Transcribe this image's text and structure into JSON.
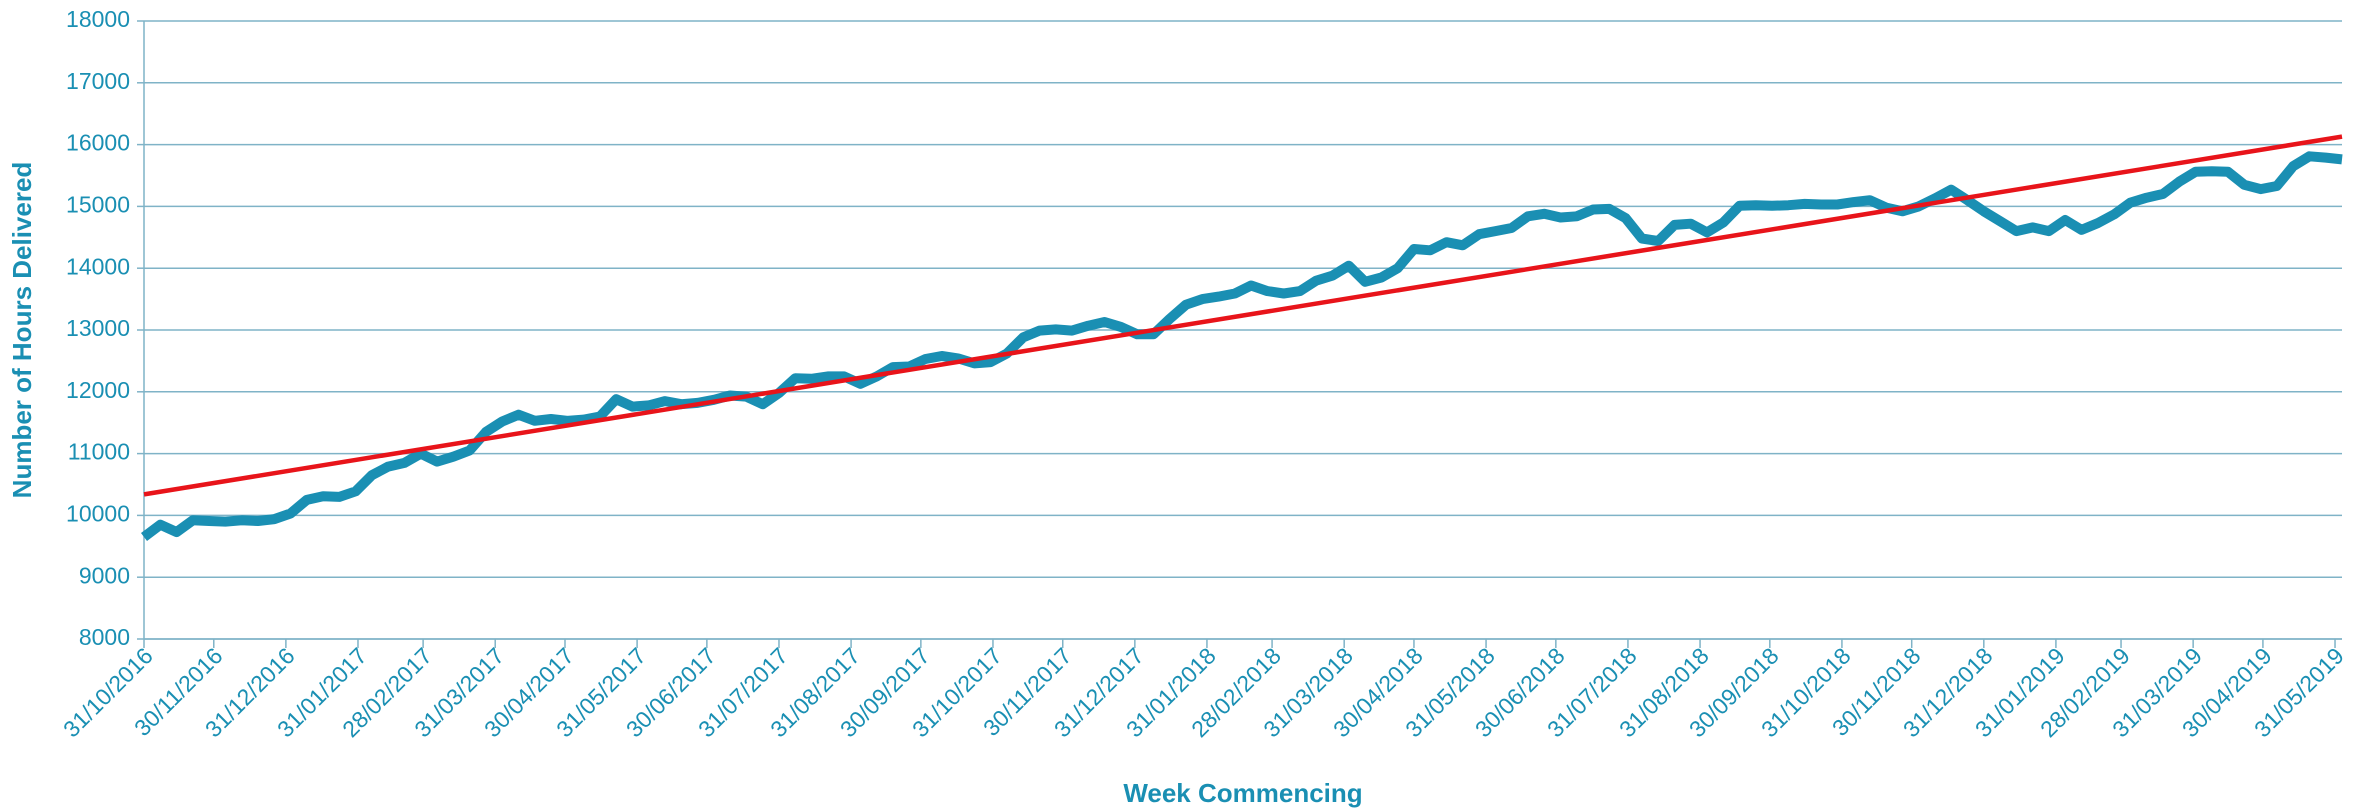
{
  "chart_data": {
    "type": "line",
    "x_label": "Week Commencing",
    "y_label": "Number of Hours Delivered",
    "series": [
      {
        "color": "#1a8fb3",
        "x": [
          "2016-10-31",
          "2016-11-07",
          "2016-11-14",
          "2016-11-21",
          "2016-11-28",
          "2016-12-05",
          "2016-12-12",
          "2016-12-19",
          "2016-12-26",
          "2017-01-02",
          "2017-01-09",
          "2017-01-16",
          "2017-01-23",
          "2017-01-30",
          "2017-02-06",
          "2017-02-13",
          "2017-02-20",
          "2017-02-27",
          "2017-03-06",
          "2017-03-13",
          "2017-03-20",
          "2017-03-27",
          "2017-04-03",
          "2017-04-10",
          "2017-04-17",
          "2017-04-24",
          "2017-05-01",
          "2017-05-08",
          "2017-05-15",
          "2017-05-22",
          "2017-05-29",
          "2017-06-05",
          "2017-06-12",
          "2017-06-19",
          "2017-06-26",
          "2017-07-03",
          "2017-07-10",
          "2017-07-17",
          "2017-07-24",
          "2017-07-31",
          "2017-08-07",
          "2017-08-14",
          "2017-08-21",
          "2017-08-28",
          "2017-09-04",
          "2017-09-11",
          "2017-09-18",
          "2017-09-25",
          "2017-10-02",
          "2017-10-09",
          "2017-10-16",
          "2017-10-23",
          "2017-10-30",
          "2017-11-06",
          "2017-11-13",
          "2017-11-20",
          "2017-11-27",
          "2017-12-04",
          "2017-12-11",
          "2017-12-18",
          "2017-12-25",
          "2018-01-01",
          "2018-01-08",
          "2018-01-15",
          "2018-01-22",
          "2018-01-29",
          "2018-02-05",
          "2018-02-12",
          "2018-02-19",
          "2018-02-26",
          "2018-03-05",
          "2018-03-12",
          "2018-03-19",
          "2018-03-26",
          "2018-04-02",
          "2018-04-09",
          "2018-04-16",
          "2018-04-23",
          "2018-04-30",
          "2018-05-07",
          "2018-05-14",
          "2018-05-21",
          "2018-05-28",
          "2018-06-04",
          "2018-06-11",
          "2018-06-18",
          "2018-06-25",
          "2018-07-02",
          "2018-07-09",
          "2018-07-16",
          "2018-07-23",
          "2018-07-30",
          "2018-08-06",
          "2018-08-13",
          "2018-08-20",
          "2018-08-27",
          "2018-09-03",
          "2018-09-10",
          "2018-09-17",
          "2018-09-24",
          "2018-10-01",
          "2018-10-08",
          "2018-10-15",
          "2018-10-22",
          "2018-10-29",
          "2018-11-05",
          "2018-11-12",
          "2018-11-19",
          "2018-11-26",
          "2018-12-03",
          "2018-12-10",
          "2018-12-17",
          "2018-12-24",
          "2018-12-31",
          "2019-01-07",
          "2019-01-14",
          "2019-01-21",
          "2019-01-28",
          "2019-02-04",
          "2019-02-11",
          "2019-02-18",
          "2019-02-25",
          "2019-03-04",
          "2019-03-11",
          "2019-03-18",
          "2019-03-25",
          "2019-04-01",
          "2019-04-08",
          "2019-04-15",
          "2019-04-22",
          "2019-04-29",
          "2019-05-06",
          "2019-05-13",
          "2019-05-20",
          "2019-05-27",
          "2019-06-03"
        ],
        "values": [
          9650,
          9850,
          9730,
          9920,
          9910,
          9900,
          9920,
          9910,
          9940,
          10030,
          10250,
          10310,
          10300,
          10390,
          10650,
          10790,
          10850,
          11000,
          10870,
          10950,
          11050,
          11350,
          11520,
          11630,
          11530,
          11560,
          11530,
          11550,
          11600,
          11880,
          11760,
          11780,
          11850,
          11800,
          11820,
          11870,
          11940,
          11920,
          11800,
          11980,
          12220,
          12210,
          12250,
          12250,
          12130,
          12250,
          12400,
          12410,
          12530,
          12580,
          12540,
          12460,
          12480,
          12620,
          12880,
          12990,
          13010,
          12990,
          13070,
          13130,
          13050,
          12930,
          12930,
          13180,
          13410,
          13500,
          13540,
          13590,
          13720,
          13630,
          13590,
          13630,
          13800,
          13880,
          14040,
          13780,
          13850,
          14000,
          14310,
          14290,
          14420,
          14370,
          14550,
          14600,
          14650,
          14840,
          14880,
          14820,
          14840,
          14950,
          14960,
          14810,
          14480,
          14440,
          14700,
          14720,
          14580,
          14740,
          15010,
          15020,
          15010,
          15020,
          15040,
          15030,
          15030,
          15070,
          15100,
          14980,
          14920,
          15000,
          15130,
          15270,
          15100,
          14920,
          14760,
          14600,
          14660,
          14600,
          14780,
          14620,
          14730,
          14870,
          15060,
          15140,
          15200,
          15400,
          15560,
          15570,
          15560,
          15350,
          15280,
          15330,
          15650,
          15810,
          15790,
          15760
        ]
      },
      {
        "color": "#e8141a",
        "x": [
          "2016-10-31",
          "2019-06-03"
        ],
        "values": [
          10340,
          16130
        ]
      }
    ],
    "xlim": [
      "2016-10-31",
      "2019-06-03"
    ],
    "xticks": [
      {
        "value": "2016-10-31",
        "label": "31/10/2016"
      },
      {
        "value": "2016-11-30",
        "label": "30/11/2016"
      },
      {
        "value": "2016-12-31",
        "label": "31/12/2016"
      },
      {
        "value": "2017-01-31",
        "label": "31/01/2017"
      },
      {
        "value": "2017-02-28",
        "label": "28/02/2017"
      },
      {
        "value": "2017-03-31",
        "label": "31/03/2017"
      },
      {
        "value": "2017-04-30",
        "label": "30/04/2017"
      },
      {
        "value": "2017-05-31",
        "label": "31/05/2017"
      },
      {
        "value": "2017-06-30",
        "label": "30/06/2017"
      },
      {
        "value": "2017-07-31",
        "label": "31/07/2017"
      },
      {
        "value": "2017-08-31",
        "label": "31/08/2017"
      },
      {
        "value": "2017-09-30",
        "label": "30/09/2017"
      },
      {
        "value": "2017-10-31",
        "label": "31/10/2017"
      },
      {
        "value": "2017-11-30",
        "label": "30/11/2017"
      },
      {
        "value": "2017-12-31",
        "label": "31/12/2017"
      },
      {
        "value": "2018-01-31",
        "label": "31/01/2018"
      },
      {
        "value": "2018-02-28",
        "label": "28/02/2018"
      },
      {
        "value": "2018-03-31",
        "label": "31/03/2018"
      },
      {
        "value": "2018-04-30",
        "label": "30/04/2018"
      },
      {
        "value": "2018-05-31",
        "label": "31/05/2018"
      },
      {
        "value": "2018-06-30",
        "label": "30/06/2018"
      },
      {
        "value": "2018-07-31",
        "label": "31/07/2018"
      },
      {
        "value": "2018-08-31",
        "label": "31/08/2018"
      },
      {
        "value": "2018-09-30",
        "label": "30/09/2018"
      },
      {
        "value": "2018-10-31",
        "label": "31/10/2018"
      },
      {
        "value": "2018-11-30",
        "label": "30/11/2018"
      },
      {
        "value": "2018-12-31",
        "label": "31/12/2018"
      },
      {
        "value": "2019-01-31",
        "label": "31/01/2019"
      },
      {
        "value": "2019-02-28",
        "label": "28/02/2019"
      },
      {
        "value": "2019-03-31",
        "label": "31/03/2019"
      },
      {
        "value": "2019-04-30",
        "label": "30/04/2019"
      },
      {
        "value": "2019-05-31",
        "label": "31/05/2019"
      }
    ],
    "ylim": [
      8000,
      18000
    ],
    "yticks": [
      8000,
      9000,
      10000,
      11000,
      12000,
      13000,
      14000,
      15000,
      16000,
      17000,
      18000
    ],
    "grid": true
  }
}
